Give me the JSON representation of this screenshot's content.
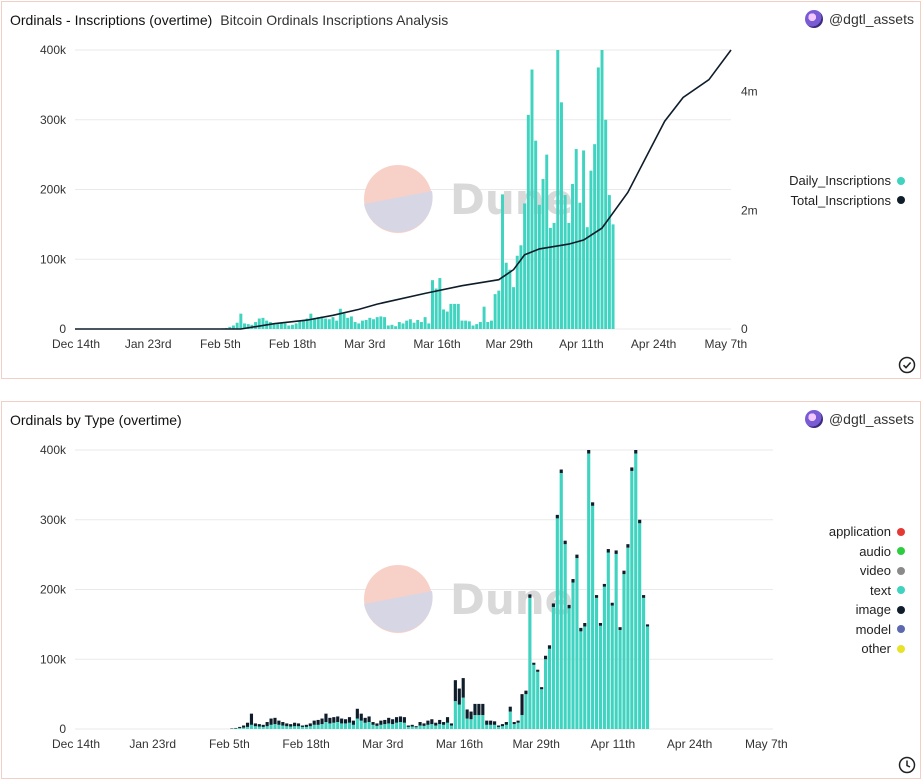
{
  "panels": [
    {
      "title": "Ordinals - Inscriptions (overtime)",
      "subtitle": "Bitcoin Ordinals Inscriptions Analysis",
      "author": "@dgtl_assets",
      "watermark": "Dune",
      "status_icon": "check-circle-icon"
    },
    {
      "title": "Ordinals by Type (overtime)",
      "subtitle": "",
      "author": "@dgtl_assets",
      "watermark": "Dune",
      "status_icon": "clock-icon"
    }
  ],
  "colors": {
    "teal": "#3fd3c0",
    "dark": "#0f1d2b",
    "grid": "#eaeaea"
  },
  "chart_data": [
    {
      "type": "bar+line",
      "title": "Ordinals - Inscriptions (overtime)",
      "x_tick_labels": [
        "Dec 14th",
        "Jan 23rd",
        "Feb 5th",
        "Feb 18th",
        "Mar 3rd",
        "Mar 16th",
        "Mar 29th",
        "Apr 11th",
        "Apr 24th",
        "May 7th"
      ],
      "y_left_ticks": [
        "400k",
        "300k",
        "200k",
        "100k",
        "0"
      ],
      "y_right_ticks": [
        "4m",
        "2m",
        "0"
      ],
      "ylim_left": [
        0,
        400000
      ],
      "ylim_right": [
        0,
        4700000
      ],
      "legend": [
        {
          "name": "Daily_Inscriptions",
          "color": "#3fd3c0"
        },
        {
          "name": "Total_Inscriptions",
          "color": "#0f1d2b"
        }
      ],
      "series": [
        {
          "name": "Daily_Inscriptions",
          "axis": "left",
          "type": "bar",
          "x_start_day": 40,
          "x_end_day": 146,
          "values": [
            1000,
            1500,
            3000,
            5000,
            9000,
            22000,
            8000,
            7000,
            6000,
            10000,
            15000,
            16000,
            12000,
            10000,
            8000,
            7000,
            9000,
            8000,
            5000,
            6000,
            8000,
            12000,
            13000,
            15000,
            22000,
            16000,
            17000,
            18000,
            15000,
            14000,
            17000,
            12000,
            29000,
            22000,
            16000,
            18000,
            10000,
            8000,
            12000,
            13000,
            16000,
            14000,
            17000,
            18000,
            17000,
            5000,
            6000,
            4000,
            10000,
            8000,
            12000,
            14000,
            9000,
            13000,
            10000,
            17000,
            8000,
            70000,
            58000,
            73000,
            28000,
            25000,
            36000,
            36000,
            36000,
            12000,
            12000,
            11000,
            5000,
            7000,
            10000,
            32000,
            10000,
            12000,
            50000,
            55000,
            193000,
            95000,
            85000,
            60000,
            105000,
            120000,
            180000,
            307000,
            372000,
            270000,
            178000,
            215000,
            250000,
            145000,
            152000,
            400000,
            325000,
            192000,
            152000,
            208000,
            258000,
            181000,
            256000,
            146000,
            227000,
            265000,
            375000,
            400000,
            300000,
            192000,
            150000
          ]
        },
        {
          "name": "Total_Inscriptions",
          "axis": "right",
          "type": "line",
          "points": [
            [
              0,
              0
            ],
            [
              45,
              0
            ],
            [
              54,
              90000
            ],
            [
              63,
              150000
            ],
            [
              70,
              230000
            ],
            [
              77,
              330000
            ],
            [
              82,
              420000
            ],
            [
              95,
              600000
            ],
            [
              105,
              730000
            ],
            [
              115,
              830000
            ],
            [
              119,
              1000000
            ],
            [
              122,
              1250000
            ],
            [
              126,
              1350000
            ],
            [
              134,
              1430000
            ],
            [
              138,
              1500000
            ],
            [
              143,
              1700000
            ],
            [
              150,
              2300000
            ],
            [
              155,
              2900000
            ],
            [
              160,
              3500000
            ],
            [
              165,
              3900000
            ],
            [
              172,
              4200000
            ],
            [
              178,
              4700000
            ]
          ]
        }
      ]
    },
    {
      "type": "stacked-bar",
      "title": "Ordinals by Type (overtime)",
      "x_tick_labels": [
        "Dec 14th",
        "Jan 23rd",
        "Feb 5th",
        "Feb 18th",
        "Mar 3rd",
        "Mar 16th",
        "Mar 29th",
        "Apr 11th",
        "Apr 24th",
        "May 7th"
      ],
      "y_ticks": [
        "400k",
        "300k",
        "200k",
        "100k",
        "0"
      ],
      "ylim": [
        0,
        400000
      ],
      "legend": [
        {
          "name": "application",
          "color": "#e53935"
        },
        {
          "name": "audio",
          "color": "#2ecc40"
        },
        {
          "name": "video",
          "color": "#8a8a8a"
        },
        {
          "name": "text",
          "color": "#3fd3c0"
        },
        {
          "name": "image",
          "color": "#0f1d2b"
        },
        {
          "name": "model",
          "color": "#5b6ab0"
        },
        {
          "name": "other",
          "color": "#e8e22a"
        }
      ],
      "x_start_day": 40,
      "x_end_day": 146,
      "series": [
        {
          "name": "text",
          "values": [
            500,
            800,
            1500,
            2000,
            3000,
            6000,
            4000,
            3500,
            3000,
            4000,
            6000,
            7000,
            6000,
            5000,
            4000,
            3500,
            4000,
            4000,
            3000,
            3000,
            4000,
            6000,
            6000,
            7000,
            10000,
            8000,
            9000,
            10000,
            8000,
            8000,
            9000,
            6000,
            15000,
            12000,
            9000,
            10000,
            6000,
            4500,
            6000,
            7000,
            8000,
            7000,
            9000,
            10000,
            9000,
            3000,
            3500,
            2500,
            5000,
            4500,
            6000,
            7000,
            5000,
            7000,
            6000,
            9000,
            5000,
            40000,
            35000,
            45000,
            15000,
            14000,
            20000,
            20000,
            20000,
            6000,
            6000,
            6000,
            3000,
            4000,
            6000,
            25000,
            7000,
            9000,
            20000,
            50000,
            188000,
            92000,
            82000,
            57000,
            100000,
            115000,
            175000,
            302000,
            367000,
            265000,
            173000,
            210000,
            245000,
            140000,
            147000,
            395000,
            320000,
            188000,
            148000,
            204000,
            253000,
            177000,
            251000,
            142000,
            222000,
            260000,
            370000,
            395000,
            295000,
            188000,
            147000
          ]
        },
        {
          "name": "image",
          "values": [
            500,
            700,
            1500,
            3000,
            6000,
            16000,
            4000,
            3500,
            3000,
            6000,
            9000,
            9000,
            6000,
            5000,
            4000,
            3500,
            5000,
            4000,
            2000,
            3000,
            4000,
            6000,
            7000,
            8000,
            12000,
            8000,
            8000,
            8000,
            7000,
            6000,
            8000,
            6000,
            14000,
            10000,
            7000,
            8000,
            4000,
            3500,
            6000,
            6000,
            8000,
            7000,
            8000,
            8000,
            8000,
            2000,
            2500,
            1500,
            5000,
            3500,
            6000,
            7000,
            4000,
            6000,
            4000,
            8000,
            3000,
            30000,
            23000,
            28000,
            13000,
            11000,
            16000,
            16000,
            16000,
            6000,
            6000,
            5000,
            2000,
            3000,
            4000,
            7000,
            3000,
            3000,
            30000,
            5000,
            5000,
            3000,
            3000,
            3000,
            5000,
            5000,
            5000,
            5000,
            5000,
            5000,
            5000,
            5000,
            5000,
            5000,
            5000,
            5000,
            5000,
            4000,
            4000,
            4000,
            5000,
            4000,
            5000,
            4000,
            5000,
            5000,
            5000,
            5000,
            5000,
            4000,
            3000
          ]
        }
      ]
    }
  ]
}
